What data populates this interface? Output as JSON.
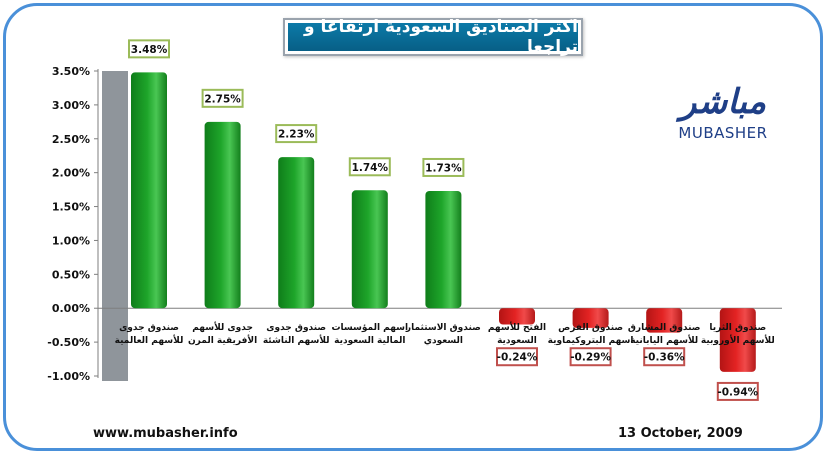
{
  "header": {
    "title": "اكثر الصناديق السعودية ارتفاعا و تراجعا"
  },
  "logo": {
    "arabic": "مباشر",
    "english": "MUBASHER"
  },
  "footer": {
    "website": "www.mubasher.info",
    "date": "13 October, 2009"
  },
  "colors": {
    "frame": "#4a90d9",
    "positive_bar": "#1ea52a",
    "negative_bar": "#e32323",
    "positive_label_border": "#9bbb59",
    "negative_label_border": "#c0504d"
  },
  "chart_data": {
    "type": "bar",
    "title": "اكثر الصناديق السعودية ارتفاعا و تراجعا",
    "xlabel": "",
    "ylabel": "",
    "ylim": [
      -1.0,
      3.5
    ],
    "yticks": [
      "3.50%",
      "3.00%",
      "2.50%",
      "2.00%",
      "1.50%",
      "1.00%",
      "0.50%",
      "0.00%",
      "-0.50%",
      "-1.00%"
    ],
    "ytick_values": [
      3.5,
      3.0,
      2.5,
      2.0,
      1.5,
      1.0,
      0.5,
      0.0,
      -0.5,
      -1.0
    ],
    "grid": false,
    "categories": [
      [
        "صندوق جدوى",
        "للأسهم العالمية"
      ],
      [
        "جدوى للأسهم",
        "الأفريقية المرن"
      ],
      [
        "صندوق جدوى",
        "للأسهم الناشئة"
      ],
      [
        "اسهم المؤسسات",
        "المالية السعودية"
      ],
      [
        "صندوق الاستثمار",
        "السعودي"
      ],
      [
        "الفتح للأسهم",
        "السعودية"
      ],
      [
        "صندوق الفرص",
        "اسهم البتروكيماوية"
      ],
      [
        "صندوق المشارق",
        "للأسهم اليابانية"
      ],
      [
        "صندوق الثريا",
        "للأسهم الأوروبية"
      ]
    ],
    "values": [
      3.48,
      2.75,
      2.23,
      1.74,
      1.73,
      -0.24,
      -0.29,
      -0.36,
      -0.94
    ],
    "data_labels": [
      "3.48%",
      "2.75%",
      "2.23%",
      "1.74%",
      "1.73%",
      "-0.24%",
      "-0.29%",
      "-0.36%",
      "-0.94%"
    ]
  }
}
